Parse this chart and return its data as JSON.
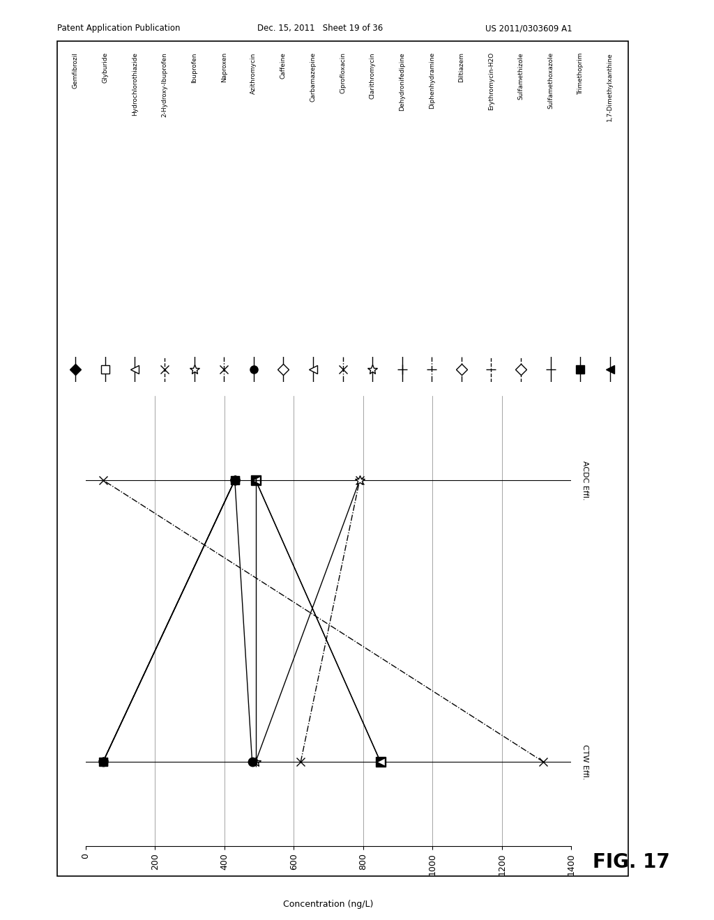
{
  "header_left": "Patent Application Publication",
  "header_mid": "Dec. 15, 2011   Sheet 19 of 36",
  "header_right": "US 2011/0303609 A1",
  "fig_label": "FIG. 17",
  "xlabel": "Concentration (ng/L)",
  "y_labels": [
    "ACDC Effl.",
    "CTW Effl."
  ],
  "xlim": [
    0,
    1400
  ],
  "xticks": [
    0,
    200,
    400,
    600,
    800,
    1000,
    1200,
    1400
  ],
  "compounds": [
    {
      "name": "Gemfibrozil",
      "CTW": null,
      "ACDC": null,
      "marker": "D",
      "ls": "-",
      "filled": true,
      "ms": 8
    },
    {
      "name": "Glyburide",
      "CTW": null,
      "ACDC": null,
      "marker": "s",
      "ls": "-",
      "filled": false,
      "ms": 8
    },
    {
      "name": "Hydrochlorothiazide",
      "CTW": null,
      "ACDC": null,
      "marker": "<",
      "ls": "-",
      "filled": false,
      "ms": 8
    },
    {
      "name": "2-Hydroxy-Ibuprofen",
      "CTW": null,
      "ACDC": null,
      "marker": "x",
      "ls": "--",
      "filled": false,
      "ms": 8
    },
    {
      "name": "Ibuprofen",
      "CTW": null,
      "ACDC": null,
      "marker": "*",
      "ls": "-",
      "filled": false,
      "ms": 10
    },
    {
      "name": "Naproxen",
      "CTW": 1320,
      "ACDC": null,
      "marker": "x",
      "ls": "-.",
      "filled": false,
      "ms": 9
    },
    {
      "name": "Azithromycin",
      "CTW": null,
      "ACDC": null,
      "marker": "o",
      "ls": "-",
      "filled": true,
      "ms": 8
    },
    {
      "name": "Caffeine",
      "CTW": null,
      "ACDC": null,
      "marker": "D",
      "ls": "-",
      "filled": false,
      "ms": 8
    },
    {
      "name": "Carbamazepine",
      "CTW": null,
      "ACDC": null,
      "marker": "<",
      "ls": "-",
      "filled": false,
      "ms": 8
    },
    {
      "name": "Ciprofloxacin",
      "CTW": null,
      "ACDC": null,
      "marker": "x",
      "ls": "-.",
      "filled": false,
      "ms": 8
    },
    {
      "name": "Clarithromycin",
      "CTW": null,
      "ACDC": null,
      "marker": "*",
      "ls": "-",
      "filled": false,
      "ms": 10
    },
    {
      "name": "Dehydronifedipine",
      "CTW": null,
      "ACDC": null,
      "marker": "+",
      "ls": "-",
      "filled": false,
      "ms": 10
    },
    {
      "name": "Diphenhydramine",
      "CTW": null,
      "ACDC": null,
      "marker": "_",
      "ls": "-.",
      "filled": false,
      "ms": 10
    },
    {
      "name": "Diltiazem",
      "CTW": null,
      "ACDC": null,
      "marker": "D",
      "ls": "-.",
      "filled": false,
      "ms": 8
    },
    {
      "name": "Erythromycin-H2O",
      "CTW": null,
      "ACDC": null,
      "marker": "_",
      "ls": "--",
      "filled": false,
      "ms": 10
    },
    {
      "name": "Sulfamethizole",
      "CTW": null,
      "ACDC": null,
      "marker": "D",
      "ls": "--",
      "filled": false,
      "ms": 8
    },
    {
      "name": "Sulfamethoxazole",
      "CTW": null,
      "ACDC": null,
      "marker": "_",
      "ls": "-",
      "filled": false,
      "ms": 10
    },
    {
      "name": "Trimethoprim",
      "CTW": null,
      "ACDC": null,
      "marker": "s",
      "ls": "-",
      "filled": true,
      "ms": 8
    },
    {
      "name": "1,7-Dimethylxanthine",
      "CTW": null,
      "ACDC": null,
      "marker": "<",
      "ls": "-",
      "filled": true,
      "ms": 8
    }
  ],
  "plot_lines": [
    {
      "CTW": 1320,
      "ACDC": 50,
      "marker": "x",
      "ls": "-.",
      "filled": false,
      "ms": 9,
      "comment": "Naproxen - dash-dot, x marker"
    },
    {
      "CTW": 850,
      "ACDC": 490,
      "marker": "s",
      "ls": "-",
      "filled": true,
      "ms": 10,
      "comment": "Caffeine filled square, ACDC upper position"
    },
    {
      "CTW": 850,
      "ACDC": 490,
      "marker": "<",
      "ls": "-",
      "filled": false,
      "ms": 9,
      "comment": "Carbamazepine open triangle"
    },
    {
      "CTW": 620,
      "ACDC": 790,
      "marker": "x",
      "ls": "-.",
      "filled": false,
      "ms": 9,
      "comment": "Ciprofloxacin dash-dot"
    },
    {
      "CTW": 490,
      "ACDC": 790,
      "marker": "*",
      "ls": "-",
      "filled": false,
      "ms": 10,
      "comment": "Clarithromycin x rising"
    },
    {
      "CTW": 490,
      "ACDC": 490,
      "marker": "+",
      "ls": "-",
      "filled": false,
      "ms": 10,
      "comment": "Dehydronifedipine flat"
    },
    {
      "CTW": 480,
      "ACDC": 430,
      "marker": "o",
      "ls": "-",
      "filled": true,
      "ms": 9,
      "comment": "Erythromycin-H2O filled circle"
    },
    {
      "CTW": 50,
      "ACDC": 430,
      "marker": "o",
      "ls": "-",
      "filled": true,
      "ms": 9,
      "comment": "circle cluster rising"
    },
    {
      "CTW": 50,
      "ACDC": 430,
      "marker": "*",
      "ls": "-",
      "filled": false,
      "ms": 10,
      "comment": "star cluster rising"
    },
    {
      "CTW": 50,
      "ACDC": 430,
      "marker": "s",
      "ls": "-",
      "filled": true,
      "ms": 8,
      "comment": "Trimethoprim square rising"
    },
    {
      "CTW": 50,
      "ACDC": 430,
      "marker": "<",
      "ls": "-",
      "filled": true,
      "ms": 9,
      "comment": "1,7-DMX triangle rising"
    }
  ]
}
